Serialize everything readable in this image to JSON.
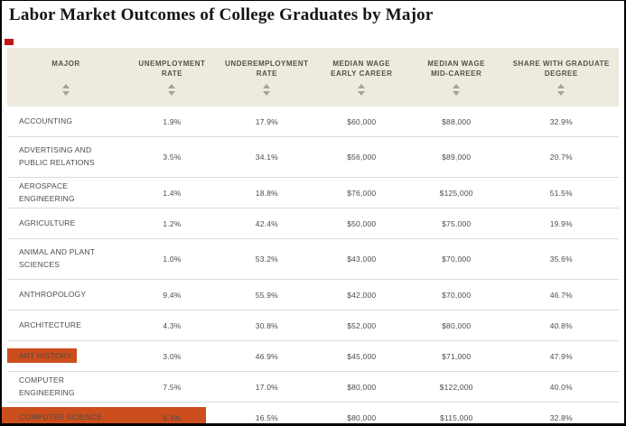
{
  "title": "Labor Market Outcomes of College Graduates by Major",
  "table": {
    "columns": [
      "MAJOR",
      "UNEMPLOYMENT\nRATE",
      "UNDEREMPLOYMENT\nRATE",
      "MEDIAN WAGE\nEARLY CAREER",
      "MEDIAN WAGE\nMID-CAREER",
      "SHARE WITH GRADUATE\nDEGREE"
    ],
    "rows": [
      [
        "ACCOUNTING",
        "1.9%",
        "17.9%",
        "$60,000",
        "$88,000",
        "32.9%"
      ],
      [
        "ADVERTISING AND PUBLIC RELATIONS",
        "3.5%",
        "34.1%",
        "$56,000",
        "$89,000",
        "20.7%"
      ],
      [
        "AEROSPACE ENGINEERING",
        "1.4%",
        "18.8%",
        "$76,000",
        "$125,000",
        "51.5%"
      ],
      [
        "AGRICULTURE",
        "1.2%",
        "42.4%",
        "$50,000",
        "$75,000",
        "19.9%"
      ],
      [
        "ANIMAL AND PLANT SCIENCES",
        "1.0%",
        "53.2%",
        "$43,000",
        "$70,000",
        "35.6%"
      ],
      [
        "ANTHROPOLOGY",
        "9.4%",
        "55.9%",
        "$42,000",
        "$70,000",
        "46.7%"
      ],
      [
        "ARCHITECTURE",
        "4.3%",
        "30.8%",
        "$52,000",
        "$80,000",
        "40.8%"
      ],
      [
        "ART HISTORY",
        "3.0%",
        "46.9%",
        "$45,000",
        "$71,000",
        "47.9%"
      ],
      [
        "COMPUTER ENGINEERING",
        "7.5%",
        "17.0%",
        "$80,000",
        "$122,000",
        "40.0%"
      ],
      [
        "COMPUTER SCIENCE",
        "6.1%",
        "16.5%",
        "$80,000",
        "$115,000",
        "32.8%"
      ]
    ]
  },
  "highlights": {
    "color": "#cb4e1c",
    "highlighted": [
      "ART HISTORY",
      "COMPUTER SCIENCE"
    ]
  },
  "colors": {
    "header_background": "#eeeade",
    "marker_red": "#c01616"
  }
}
